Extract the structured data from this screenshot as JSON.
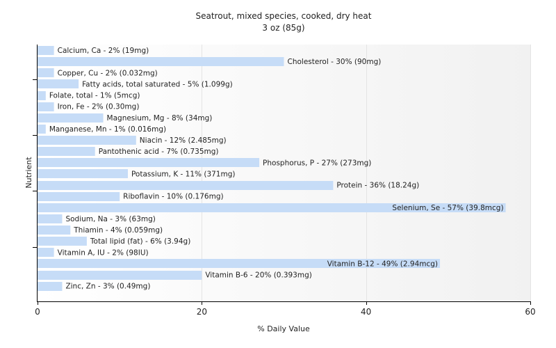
{
  "chart_data": {
    "type": "bar",
    "orientation": "horizontal",
    "title": "Seatrout, mixed species, cooked, dry heat",
    "subtitle": "3 oz (85g)",
    "xlabel": "% Daily Value",
    "ylabel": "Nutrient",
    "xlim": [
      0,
      60
    ],
    "xticks": [
      0,
      20,
      40,
      60
    ],
    "grid": true,
    "legend": "none",
    "bar_color": "#c6dcf7",
    "categories": [
      "Calcium, Ca",
      "Cholesterol",
      "Copper, Cu",
      "Fatty acids, total saturated",
      "Folate, total",
      "Iron, Fe",
      "Magnesium, Mg",
      "Manganese, Mn",
      "Niacin",
      "Pantothenic acid",
      "Phosphorus, P",
      "Potassium, K",
      "Protein",
      "Riboflavin",
      "Selenium, Se",
      "Sodium, Na",
      "Thiamin",
      "Total lipid (fat)",
      "Vitamin A, IU",
      "Vitamin B-12",
      "Vitamin B-6",
      "Zinc, Zn"
    ],
    "values": [
      2,
      30,
      2,
      5,
      1,
      2,
      8,
      1,
      12,
      7,
      27,
      11,
      36,
      10,
      57,
      3,
      4,
      6,
      2,
      49,
      20,
      3
    ],
    "labels": [
      "Calcium, Ca - 2% (19mg)",
      "Cholesterol - 30% (90mg)",
      "Copper, Cu - 2% (0.032mg)",
      "Fatty acids, total saturated - 5% (1.099g)",
      "Folate, total - 1% (5mcg)",
      "Iron, Fe - 2% (0.30mg)",
      "Magnesium, Mg - 8% (34mg)",
      "Manganese, Mn - 1% (0.016mg)",
      "Niacin - 12% (2.485mg)",
      "Pantothenic acid - 7% (0.735mg)",
      "Phosphorus, P - 27% (273mg)",
      "Potassium, K - 11% (371mg)",
      "Protein - 36% (18.24g)",
      "Riboflavin - 10% (0.176mg)",
      "Selenium, Se - 57% (39.8mcg)",
      "Sodium, Na - 3% (63mg)",
      "Thiamin - 4% (0.059mg)",
      "Total lipid (fat) - 6% (3.94g)",
      "Vitamin A, IU - 2% (98IU)",
      "Vitamin B-12 - 49% (2.94mcg)",
      "Vitamin B-6 - 20% (0.393mg)",
      "Zinc, Zn - 3% (0.49mg)"
    ]
  }
}
